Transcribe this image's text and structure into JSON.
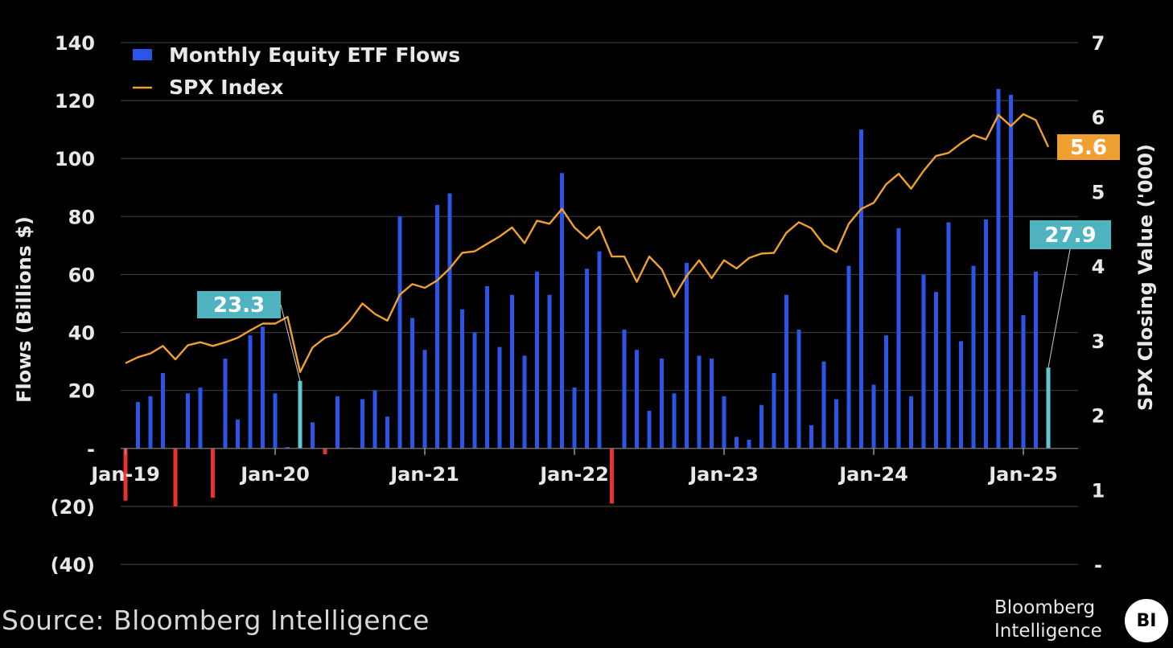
{
  "chart_data": {
    "type": "bar-line",
    "title": "",
    "legend": [
      {
        "name": "Monthly Equity ETF Flows",
        "color": "#2a55e8",
        "marker": "square"
      },
      {
        "name": "SPX Index",
        "color": "#f0a030",
        "marker": "line"
      }
    ],
    "left_axis": {
      "label": "Flows (Billions $)",
      "ylim": [
        -40,
        140
      ],
      "ticks": [
        140,
        120,
        100,
        80,
        60,
        40,
        20,
        0,
        -20,
        -40
      ],
      "tick_labels": [
        "140",
        "120",
        "100",
        "80",
        "60",
        "40",
        "20",
        "-",
        "(20)",
        "(40)"
      ]
    },
    "right_axis": {
      "label": "SPX Closing Value ('000)",
      "ylim": [
        0,
        7
      ],
      "ticks": [
        7,
        6,
        5,
        4,
        3,
        2,
        1,
        0
      ],
      "tick_labels": [
        "7",
        "6",
        "5",
        "4",
        "3",
        "2",
        "1",
        "-"
      ]
    },
    "x_tick_labels": [
      "Jan-19",
      "Jan-20",
      "Jan-21",
      "Jan-22",
      "Jan-23",
      "Jan-24",
      "Jan-25"
    ],
    "x_tick_month_index": [
      0,
      12,
      24,
      36,
      48,
      60,
      72
    ],
    "months_total": 75,
    "series": [
      {
        "name": "Monthly Equity ETF Flows",
        "type": "bar",
        "unit": "Billions $",
        "values": [
          -18,
          16,
          18,
          26,
          -20,
          19,
          21,
          -17,
          31,
          10,
          39,
          42,
          19,
          0.5,
          23.3,
          9,
          -2,
          18,
          0.3,
          17,
          20,
          11,
          80,
          45,
          34,
          84,
          88,
          48,
          40,
          56,
          35,
          53,
          32,
          61,
          53,
          95,
          21,
          62,
          68,
          -19,
          41,
          34,
          13,
          31,
          19,
          64,
          32,
          31,
          18,
          4,
          3,
          15,
          26,
          53,
          41,
          8,
          30,
          17,
          63,
          110,
          22,
          39,
          76,
          18,
          60,
          54,
          78,
          37,
          63,
          79,
          124,
          122,
          46,
          61,
          27.9
        ]
      },
      {
        "name": "SPX Index",
        "type": "line",
        "unit": "'000",
        "values": [
          2.7,
          2.78,
          2.83,
          2.93,
          2.75,
          2.94,
          2.98,
          2.93,
          2.98,
          3.04,
          3.14,
          3.23,
          3.23,
          3.32,
          2.58,
          2.91,
          3.04,
          3.1,
          3.27,
          3.5,
          3.36,
          3.27,
          3.62,
          3.76,
          3.71,
          3.81,
          3.97,
          4.18,
          4.2,
          4.3,
          4.4,
          4.52,
          4.31,
          4.61,
          4.57,
          4.77,
          4.52,
          4.37,
          4.53,
          4.13,
          4.13,
          3.79,
          4.13,
          3.96,
          3.59,
          3.87,
          4.08,
          3.84,
          4.08,
          3.97,
          4.11,
          4.17,
          4.18,
          4.45,
          4.59,
          4.51,
          4.29,
          4.19,
          4.57,
          4.77,
          4.85,
          5.1,
          5.24,
          5.04,
          5.28,
          5.48,
          5.52,
          5.65,
          5.76,
          5.7,
          6.03,
          5.88,
          6.04,
          5.96,
          5.6
        ]
      }
    ],
    "callouts": [
      {
        "label": "23.3",
        "series": "Monthly Equity ETF Flows",
        "month_index": 14
      },
      {
        "label": "27.9",
        "series": "Monthly Equity ETF Flows",
        "month_index": 74
      },
      {
        "label": "5.6",
        "series": "SPX Index",
        "month_index": 74
      }
    ]
  },
  "colors": {
    "background": "#000000",
    "bar_positive": "#2a55e8",
    "bar_negative": "#e8322a",
    "bar_highlight": "#5fc8d0",
    "line": "#f0a030",
    "callout_flow_bg": "#4fb3c0",
    "callout_spx_bg": "#f0a030",
    "gridline": "#3a3a3a",
    "text": "#e8e8e8"
  },
  "footer": {
    "source": "Source: Bloomberg Intelligence",
    "brand_line1": "Bloomberg",
    "brand_line2": "Intelligence",
    "brand_badge": "BI"
  }
}
